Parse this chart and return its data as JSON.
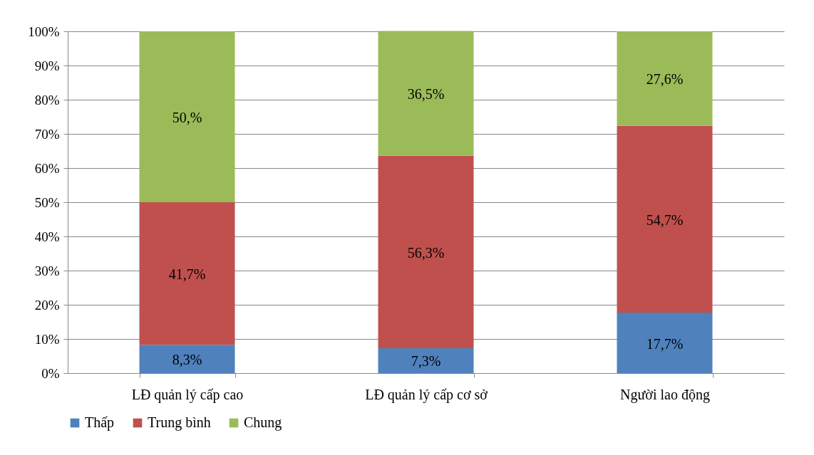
{
  "chart_data": {
    "type": "bar",
    "stacked": true,
    "categories": [
      "LĐ quản lý cấp cao",
      "LĐ quản lý cấp cơ sở",
      "Người lao động"
    ],
    "series": [
      {
        "name": "Thấp",
        "color": "#4f81bd",
        "values": [
          8.3,
          7.3,
          17.7
        ],
        "value_labels": [
          "8,3%",
          "7,3%",
          "17,7%"
        ]
      },
      {
        "name": "Trung bình",
        "color": "#c0504d",
        "values": [
          41.7,
          56.3,
          54.7
        ],
        "value_labels": [
          "41,7%",
          "56,3%",
          "54,7%"
        ]
      },
      {
        "name": "Chung",
        "color": "#9bbb59",
        "values": [
          50,
          36.5,
          27.6
        ],
        "value_labels": [
          "50,%",
          "36,5%",
          "27,6%"
        ]
      }
    ],
    "ylim": [
      0,
      100
    ],
    "yticks": [
      {
        "value": 0,
        "label": "0%"
      },
      {
        "value": 10,
        "label": "10%"
      },
      {
        "value": 20,
        "label": "20%"
      },
      {
        "value": 30,
        "label": "30%"
      },
      {
        "value": 40,
        "label": "40%"
      },
      {
        "value": 50,
        "label": "50%"
      },
      {
        "value": 60,
        "label": "60%"
      },
      {
        "value": 70,
        "label": "70%"
      },
      {
        "value": 80,
        "label": "80%"
      },
      {
        "value": 90,
        "label": "90%"
      },
      {
        "value": 100,
        "label": "100%"
      }
    ],
    "grid": "y",
    "legend": "bottom"
  }
}
